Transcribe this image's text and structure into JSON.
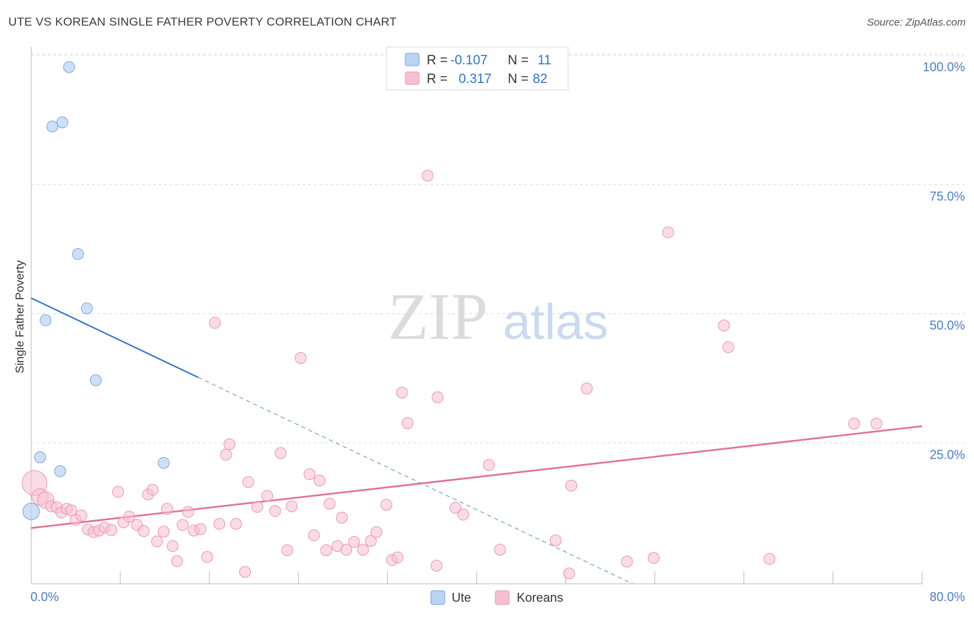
{
  "title": "UTE VS KOREAN SINGLE FATHER POVERTY CORRELATION CHART",
  "source": "Source: ZipAtlas.com",
  "watermark": {
    "zip": "ZIP",
    "atlas": "atlas"
  },
  "colors": {
    "ute_fill": "#b9d3f3",
    "ute_stroke": "#7aa7dd",
    "ute_line": "#2e73c9",
    "korean_fill": "#f7c0d2",
    "korean_stroke": "#ea97b3",
    "korean_line": "#e27098",
    "axis_label": "#4a7fc6",
    "grid": "#dcdcdc"
  },
  "legend_top": [
    {
      "r_label": "R =",
      "r_value": "-0.107",
      "n_label": "N =",
      "n_value": "11"
    },
    {
      "r_label": "R =",
      "r_value": "0.317",
      "n_label": "N =",
      "n_value": "82"
    }
  ],
  "chart_data": {
    "type": "scatter",
    "title": "UTE VS KOREAN SINGLE FATHER POVERTY CORRELATION CHART",
    "xlabel": "",
    "ylabel": "Single Father Poverty",
    "xlim": [
      0,
      80
    ],
    "ylim": [
      0,
      100
    ],
    "x_tick_labels": [
      "0.0%",
      "80.0%"
    ],
    "y_ticks": [
      25,
      50,
      75,
      100
    ],
    "y_tick_labels": [
      "25.0%",
      "50.0%",
      "75.0%",
      "100.0%"
    ],
    "grid": true,
    "legend_position": "bottom-center",
    "series": [
      {
        "name": "Ute",
        "r": -0.107,
        "n": 11,
        "points": [
          [
            0,
            14.0,
            12
          ],
          [
            1.3,
            51.0,
            8
          ],
          [
            2.6,
            21.8,
            8
          ],
          [
            0.8,
            24.5,
            8
          ],
          [
            1.9,
            88.5,
            8
          ],
          [
            2.8,
            89.3,
            8
          ],
          [
            3.4,
            100.0,
            8
          ],
          [
            4.2,
            63.8,
            8
          ],
          [
            5.0,
            53.3,
            8
          ],
          [
            5.8,
            39.4,
            8
          ],
          [
            11.9,
            23.4,
            8
          ]
        ],
        "trend": {
          "x0": 0,
          "y0": 55.3,
          "x_solid_end": 15.0,
          "x1": 54.0,
          "y1": 0.0
        }
      },
      {
        "name": "Koreans",
        "r": 0.317,
        "n": 82,
        "points": [
          [
            0.3,
            19.5,
            18
          ],
          [
            0.8,
            16.8,
            12
          ],
          [
            1.3,
            16.2,
            12
          ],
          [
            1.8,
            15.0,
            8
          ],
          [
            2.3,
            14.8,
            8
          ],
          [
            2.7,
            13.8,
            8
          ],
          [
            3.2,
            14.5,
            8
          ],
          [
            3.6,
            14.2,
            8
          ],
          [
            4.0,
            12.4,
            8
          ],
          [
            4.5,
            13.2,
            8
          ],
          [
            5.1,
            10.5,
            8
          ],
          [
            5.6,
            10.0,
            8
          ],
          [
            6.1,
            10.3,
            8
          ],
          [
            6.6,
            10.9,
            8
          ],
          [
            7.2,
            10.4,
            8
          ],
          [
            7.8,
            17.8,
            8
          ],
          [
            8.3,
            11.9,
            8
          ],
          [
            8.8,
            13.0,
            8
          ],
          [
            9.5,
            11.4,
            8
          ],
          [
            10.1,
            10.2,
            8
          ],
          [
            10.5,
            17.3,
            8
          ],
          [
            10.9,
            18.2,
            8
          ],
          [
            11.3,
            8.2,
            8
          ],
          [
            11.9,
            10.1,
            8
          ],
          [
            12.2,
            14.5,
            8
          ],
          [
            12.7,
            7.3,
            8
          ],
          [
            13.1,
            4.4,
            8
          ],
          [
            13.6,
            11.4,
            8
          ],
          [
            14.1,
            13.9,
            8
          ],
          [
            14.6,
            10.3,
            8
          ],
          [
            15.2,
            10.6,
            8
          ],
          [
            15.8,
            5.2,
            8
          ],
          [
            16.5,
            50.5,
            8
          ],
          [
            16.9,
            11.6,
            8
          ],
          [
            17.5,
            25.0,
            8
          ],
          [
            17.8,
            27.0,
            8
          ],
          [
            18.4,
            11.6,
            8
          ],
          [
            19.2,
            2.3,
            8
          ],
          [
            19.5,
            19.7,
            8
          ],
          [
            20.3,
            14.9,
            8
          ],
          [
            21.2,
            17.0,
            8
          ],
          [
            21.9,
            14.1,
            8
          ],
          [
            22.4,
            25.3,
            8
          ],
          [
            23.0,
            6.5,
            8
          ],
          [
            23.4,
            15.0,
            8
          ],
          [
            24.2,
            43.7,
            8
          ],
          [
            25.0,
            21.2,
            8
          ],
          [
            25.4,
            9.4,
            8
          ],
          [
            25.9,
            20.0,
            8
          ],
          [
            26.5,
            6.5,
            8
          ],
          [
            26.8,
            15.5,
            8
          ],
          [
            27.5,
            7.3,
            8
          ],
          [
            27.9,
            12.8,
            8
          ],
          [
            28.3,
            6.6,
            8
          ],
          [
            29.0,
            8.1,
            8
          ],
          [
            29.8,
            6.6,
            8
          ],
          [
            30.5,
            8.3,
            8
          ],
          [
            31.0,
            10.0,
            8
          ],
          [
            31.9,
            15.3,
            8
          ],
          [
            32.4,
            4.6,
            8
          ],
          [
            32.9,
            5.1,
            8
          ],
          [
            33.3,
            37.0,
            8
          ],
          [
            33.8,
            31.1,
            8
          ],
          [
            35.6,
            79.0,
            8
          ],
          [
            36.4,
            3.5,
            8
          ],
          [
            36.5,
            36.1,
            8
          ],
          [
            38.1,
            14.7,
            8
          ],
          [
            38.8,
            13.4,
            8
          ],
          [
            41.1,
            23.0,
            8
          ],
          [
            42.1,
            6.6,
            8
          ],
          [
            47.1,
            8.4,
            8
          ],
          [
            48.3,
            2.0,
            8
          ],
          [
            48.5,
            19.0,
            8
          ],
          [
            49.9,
            37.8,
            8
          ],
          [
            53.5,
            4.3,
            8
          ],
          [
            55.9,
            5.0,
            8
          ],
          [
            57.2,
            68.0,
            8
          ],
          [
            62.2,
            50.0,
            8
          ],
          [
            62.6,
            45.8,
            8
          ],
          [
            66.3,
            4.8,
            8
          ],
          [
            73.9,
            31.0,
            8
          ],
          [
            75.9,
            31.0,
            8
          ]
        ],
        "trend": {
          "x0": 0,
          "y0": 10.8,
          "x1": 80.0,
          "y1": 30.5
        }
      }
    ]
  }
}
